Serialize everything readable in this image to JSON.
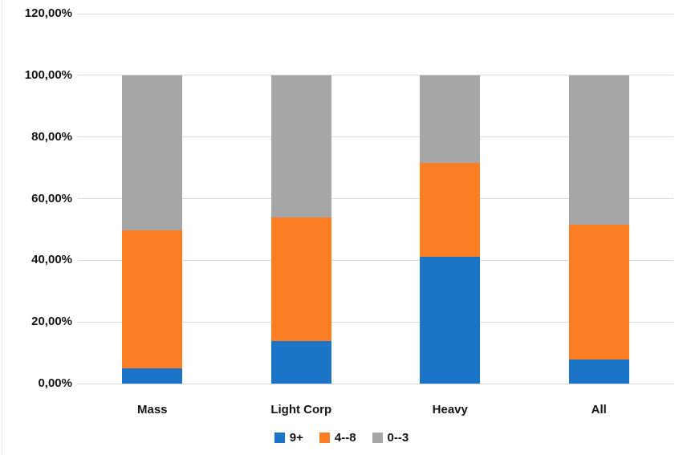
{
  "chart_data": {
    "type": "bar",
    "stacked": true,
    "title": "",
    "xlabel": "",
    "ylabel": "",
    "categories": [
      "Mass",
      "Light Corp",
      "Heavy",
      "All"
    ],
    "series": [
      {
        "name": "9+",
        "color": "#1b74c5",
        "values": [
          5.0,
          13.8,
          41.0,
          7.8
        ]
      },
      {
        "name": "4--8",
        "color": "#fb7d24",
        "values": [
          44.8,
          40.2,
          30.5,
          43.7
        ]
      },
      {
        "name": "0--3",
        "color": "#a6a6a6",
        "values": [
          50.2,
          46.0,
          28.5,
          48.5
        ]
      }
    ],
    "ylim": [
      0,
      120
    ],
    "ytick_step": 20,
    "ytick_labels": [
      "0,00%",
      "20,00%",
      "40,00%",
      "60,00%",
      "80,00%",
      "100,00%",
      "120,00%"
    ],
    "grid": true,
    "gridline_color": "#d9d9d9",
    "legend_position": "bottom"
  }
}
